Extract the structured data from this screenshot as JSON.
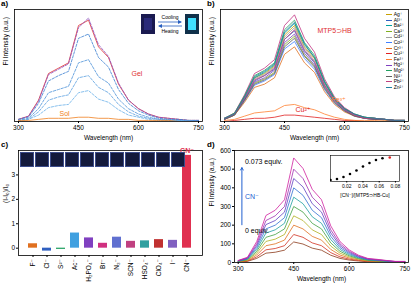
{
  "chart_data": [
    {
      "type": "line",
      "title": "a)",
      "xlabel": "Wavelength (nm)",
      "ylabel": "Fl Intensity (a.u.)",
      "x": [
        300,
        325,
        350,
        375,
        400,
        425,
        450,
        475,
        500,
        525,
        550,
        575,
        600,
        625,
        650,
        675,
        700,
        725,
        750
      ],
      "series": [
        {
          "color": "#e03030",
          "values": [
            2,
            5,
            20,
            45,
            50,
            55,
            90,
            95,
            70,
            60,
            35,
            20,
            12,
            7,
            4,
            3,
            2,
            1,
            1
          ]
        },
        {
          "color": "#8a4fc0",
          "line_style": "dashed",
          "values": [
            2,
            5,
            19,
            44,
            49,
            54,
            88,
            97,
            72,
            61,
            36,
            20,
            12,
            7,
            4,
            3,
            2,
            1,
            1
          ]
        },
        {
          "color": "#3a7fd0",
          "line_style": "dashed",
          "values": [
            2,
            4,
            17,
            38,
            43,
            47,
            78,
            82,
            60,
            51,
            30,
            17,
            10,
            6,
            3,
            2,
            2,
            1,
            1
          ]
        },
        {
          "color": "#4a90d8",
          "line_style": "dashed",
          "values": [
            1,
            3,
            12,
            27,
            30,
            33,
            55,
            58,
            42,
            36,
            21,
            12,
            7,
            4,
            2,
            2,
            1,
            1,
            1
          ]
        },
        {
          "color": "#5aa0e0",
          "line_style": "dashed",
          "values": [
            1,
            2,
            9,
            20,
            23,
            25,
            41,
            43,
            32,
            27,
            16,
            9,
            5,
            3,
            2,
            1,
            1,
            1,
            0
          ]
        },
        {
          "color": "#6ab0e8",
          "line_style": "dashed",
          "values": [
            1,
            2,
            6,
            13,
            15,
            16,
            27,
            29,
            21,
            18,
            11,
            6,
            4,
            2,
            1,
            1,
            1,
            0,
            0
          ]
        },
        {
          "color": "#f08020",
          "values": [
            1,
            1,
            2,
            3,
            3,
            3,
            4,
            4,
            3,
            3,
            2,
            2,
            1,
            1,
            1,
            1,
            0,
            0,
            0
          ]
        }
      ],
      "xlim": [
        290,
        760
      ],
      "xticks": [
        300,
        450,
        600,
        750
      ],
      "ylim": [
        0,
        105
      ],
      "yticks": [],
      "tick_labels": "x",
      "annotations": [
        {
          "text": "Gel",
          "x": 575,
          "y": 45,
          "color": "#e03030"
        },
        {
          "text": "Sol",
          "x": 395,
          "y": 7,
          "color": "#f08020"
        }
      ],
      "inset_labels": [
        "Cooling",
        "Heating"
      ]
    },
    {
      "type": "line",
      "title": "b)",
      "xlabel": "Wavelength (nm)",
      "ylabel": "Fl Intensity (a.u.)",
      "x": [
        300,
        325,
        350,
        375,
        400,
        425,
        450,
        475,
        500,
        525,
        550,
        575,
        600,
        625,
        650,
        675,
        700,
        725,
        750
      ],
      "series": [
        {
          "color": "#c03080",
          "values": [
            3,
            8,
            25,
            45,
            50,
            58,
            90,
            100,
            78,
            65,
            40,
            23,
            13,
            7,
            4,
            3,
            2,
            1,
            1
          ]
        },
        {
          "name": "Ag⁺",
          "color": "#c8a000",
          "values": [
            3,
            7,
            23,
            41,
            45,
            52,
            81,
            90,
            70,
            59,
            36,
            21,
            12,
            6,
            4,
            3,
            2,
            1,
            1
          ]
        },
        {
          "name": "Al³⁺",
          "color": "#3060c0",
          "values": [
            3,
            7,
            21,
            38,
            43,
            49,
            77,
            85,
            66,
            55,
            34,
            20,
            11,
            6,
            3,
            3,
            2,
            1,
            1
          ]
        },
        {
          "name": "Ba²⁺",
          "color": "#00a0a0",
          "values": [
            3,
            7,
            23,
            41,
            46,
            53,
            83,
            92,
            72,
            60,
            37,
            21,
            12,
            6,
            4,
            3,
            2,
            1,
            1
          ]
        },
        {
          "name": "Ca²⁺",
          "color": "#80b020",
          "values": [
            2,
            6,
            20,
            36,
            40,
            46,
            72,
            80,
            62,
            52,
            32,
            18,
            10,
            6,
            3,
            2,
            2,
            1,
            1
          ]
        },
        {
          "name": "Cd²⁺",
          "color": "#a0a0a0",
          "values": [
            3,
            7,
            22,
            40,
            44,
            51,
            79,
            88,
            69,
            57,
            35,
            20,
            11,
            6,
            4,
            3,
            2,
            1,
            1
          ]
        },
        {
          "name": "Co²⁺",
          "color": "#4080ff",
          "values": [
            2,
            6,
            19,
            34,
            38,
            44,
            68,
            75,
            59,
            49,
            30,
            17,
            10,
            5,
            3,
            2,
            2,
            1,
            1
          ]
        },
        {
          "name": "Cr³⁺",
          "color": "#e07020",
          "values": [
            2,
            6,
            18,
            32,
            35,
            41,
            63,
            70,
            55,
            46,
            28,
            16,
            9,
            5,
            3,
            2,
            1,
            1,
            1
          ]
        },
        {
          "name": "Cu²⁺",
          "color": "#e02020",
          "values": [
            0,
            1,
            2,
            3,
            3,
            4,
            6,
            6,
            5,
            4,
            3,
            2,
            1,
            1,
            0,
            0,
            0,
            0,
            0
          ]
        },
        {
          "name": "Fe³⁺",
          "color": "#ff8030",
          "values": [
            1,
            2,
            5,
            8,
            9,
            10,
            15,
            16,
            13,
            11,
            7,
            4,
            2,
            1,
            1,
            1,
            0,
            0,
            0
          ]
        },
        {
          "name": "Hg²⁺",
          "color": "#8040c0",
          "values": [
            2,
            7,
            21,
            37,
            41,
            48,
            74,
            82,
            64,
            53,
            33,
            19,
            11,
            6,
            3,
            2,
            2,
            1,
            1
          ]
        },
        {
          "name": "Mg²⁺",
          "color": "#20a060",
          "values": [
            3,
            8,
            24,
            43,
            48,
            55,
            86,
            95,
            74,
            62,
            38,
            22,
            12,
            7,
            4,
            3,
            2,
            1,
            1
          ]
        },
        {
          "name": "Ni²⁺",
          "color": "#606060",
          "values": [
            2,
            6,
            20,
            35,
            39,
            45,
            70,
            78,
            61,
            51,
            31,
            18,
            10,
            5,
            3,
            2,
            2,
            1,
            1
          ]
        },
        {
          "name": "Pb²⁺",
          "color": "#c04080",
          "values": [
            3,
            7,
            22,
            39,
            43,
            50,
            77,
            86,
            67,
            56,
            34,
            20,
            11,
            6,
            3,
            3,
            2,
            1,
            1
          ]
        },
        {
          "name": "Zn²⁺",
          "color": "#2080a0",
          "values": [
            3,
            7,
            23,
            42,
            47,
            54,
            84,
            93,
            73,
            60,
            37,
            21,
            12,
            7,
            4,
            3,
            2,
            1,
            1
          ]
        }
      ],
      "xlim": [
        290,
        760
      ],
      "xticks": [
        300,
        450,
        600,
        750
      ],
      "ylim": [
        0,
        105
      ],
      "yticks": [],
      "tick_labels": "x",
      "legend": "top-right",
      "annotations": [
        {
          "text": "MTP5⊃HB",
          "x": 525,
          "y": 85,
          "color": "#e03030"
        },
        {
          "text": "Fe³⁺",
          "x": 560,
          "y": 20,
          "color": "#ff8030"
        },
        {
          "text": "Cu²⁺",
          "x": 470,
          "y": 11,
          "color": "#e02020"
        }
      ]
    },
    {
      "type": "bar",
      "title": "c)",
      "ylabel": "(I-I₀)/I₀",
      "categories": [
        "F⁻",
        "Cl⁻",
        "S²⁻",
        "Ac⁻",
        "H₂PO₄⁻",
        "Br⁻",
        "N₃⁻",
        "SCN⁻",
        "HSO₄⁻",
        "ClO₄⁻",
        "I⁻",
        "CN⁻"
      ],
      "values": [
        0.18,
        -0.12,
        -0.05,
        0.62,
        0.42,
        0.2,
        0.45,
        0.28,
        0.3,
        0.35,
        0.32,
        3.8
      ],
      "colors": [
        "#e07020",
        "#3060c0",
        "#20a060",
        "#40a0e0",
        "#8040c0",
        "#d03080",
        "#6070d0",
        "#c04080",
        "#30a0a0",
        "#c03030",
        "#8060c0",
        "#e03050"
      ],
      "ylim": [
        -0.3,
        4.0
      ],
      "yticks": [
        0,
        1,
        2,
        3
      ],
      "annotations": [
        {
          "text": "CN⁻",
          "x": "CN⁻",
          "y": 3.8,
          "color": "#e03050"
        }
      ]
    },
    {
      "type": "line",
      "title": "d)",
      "xlabel": "Wavelength (nm)",
      "ylabel": "Fl Intensity (a.u.)",
      "x": [
        300,
        325,
        350,
        375,
        400,
        425,
        450,
        475,
        500,
        525,
        550,
        575,
        600,
        625,
        650,
        675,
        700,
        725,
        750
      ],
      "series": [
        {
          "color": "#8b3a1a",
          "values": [
            2,
            6,
            22,
            50,
            55,
            66,
            110,
            99,
            77,
            66,
            39,
            22,
            13,
            8,
            4,
            3,
            2,
            1,
            1
          ]
        },
        {
          "color": "#d03020",
          "values": [
            3,
            8,
            30,
            68,
            75,
            90,
            150,
            135,
            105,
            90,
            53,
            30,
            18,
            11,
            6,
            5,
            3,
            2,
            2
          ]
        },
        {
          "color": "#e07020",
          "values": [
            4,
            10,
            40,
            90,
            100,
            120,
            200,
            180,
            140,
            120,
            70,
            40,
            24,
            14,
            8,
            6,
            4,
            2,
            2
          ]
        },
        {
          "color": "#b0b020",
          "values": [
            5,
            13,
            50,
            113,
            125,
            150,
            250,
            225,
            175,
            150,
            88,
            50,
            30,
            18,
            10,
            8,
            5,
            3,
            3
          ]
        },
        {
          "color": "#40a040",
          "values": [
            6,
            15,
            60,
            135,
            150,
            180,
            300,
            270,
            210,
            180,
            105,
            60,
            36,
            21,
            12,
            9,
            6,
            3,
            3
          ]
        },
        {
          "color": "#20a0a0",
          "values": [
            7,
            18,
            70,
            158,
            175,
            210,
            350,
            315,
            245,
            210,
            123,
            70,
            42,
            25,
            14,
            11,
            7,
            4,
            4
          ]
        },
        {
          "color": "#3070d0",
          "values": [
            8,
            20,
            80,
            180,
            200,
            240,
            400,
            360,
            280,
            240,
            140,
            80,
            48,
            28,
            16,
            12,
            8,
            4,
            4
          ]
        },
        {
          "color": "#6040c0",
          "values": [
            9,
            23,
            90,
            203,
            225,
            270,
            450,
            405,
            315,
            270,
            158,
            90,
            54,
            32,
            18,
            14,
            9,
            5,
            5
          ]
        },
        {
          "color": "#a030b0",
          "values": [
            10,
            25,
            100,
            225,
            250,
            300,
            500,
            450,
            350,
            300,
            175,
            100,
            60,
            35,
            20,
            15,
            10,
            5,
            5
          ]
        },
        {
          "color": "#d020a0",
          "values": [
            11,
            28,
            112,
            252,
            280,
            336,
            560,
            504,
            392,
            336,
            196,
            112,
            67,
            39,
            22,
            17,
            11,
            6,
            6
          ]
        }
      ],
      "xlim": [
        290,
        760
      ],
      "xticks": [
        300,
        450,
        600,
        750
      ],
      "ylim": [
        0,
        600
      ],
      "yticks": [
        0,
        100,
        200,
        300,
        400,
        500,
        600
      ],
      "annotations": [
        {
          "text": "0.073 equiv.",
          "x": 310,
          "y": 540,
          "color": "#000000"
        },
        {
          "text": "CN⁻",
          "x": 310,
          "y": 350,
          "color": "#2060d0",
          "marker": "arrow"
        },
        {
          "text": "0 equiv.",
          "x": 310,
          "y": 170,
          "color": "#000000"
        }
      ],
      "inset": {
        "type": "scatter",
        "xlabel": "[CN⁻]/[MTP5⊃HB-Cu]",
        "x": [
          0,
          0.008,
          0.016,
          0.024,
          0.032,
          0.04,
          0.048,
          0.056,
          0.064,
          0.073
        ],
        "values": [
          110,
          130,
          170,
          230,
          300,
          380,
          450,
          510,
          545,
          560
        ],
        "colors": [
          "#000000",
          "#000000",
          "#000000",
          "#000000",
          "#000000",
          "#000000",
          "#000000",
          "#000000",
          "#000000",
          "#e02020"
        ],
        "xlim": [
          0,
          0.085
        ],
        "xticks": [
          0.02,
          0.04,
          0.06,
          0.08
        ],
        "ylim": [
          80,
          600
        ],
        "yticks": [],
        "tick_labels": "x"
      }
    }
  ]
}
